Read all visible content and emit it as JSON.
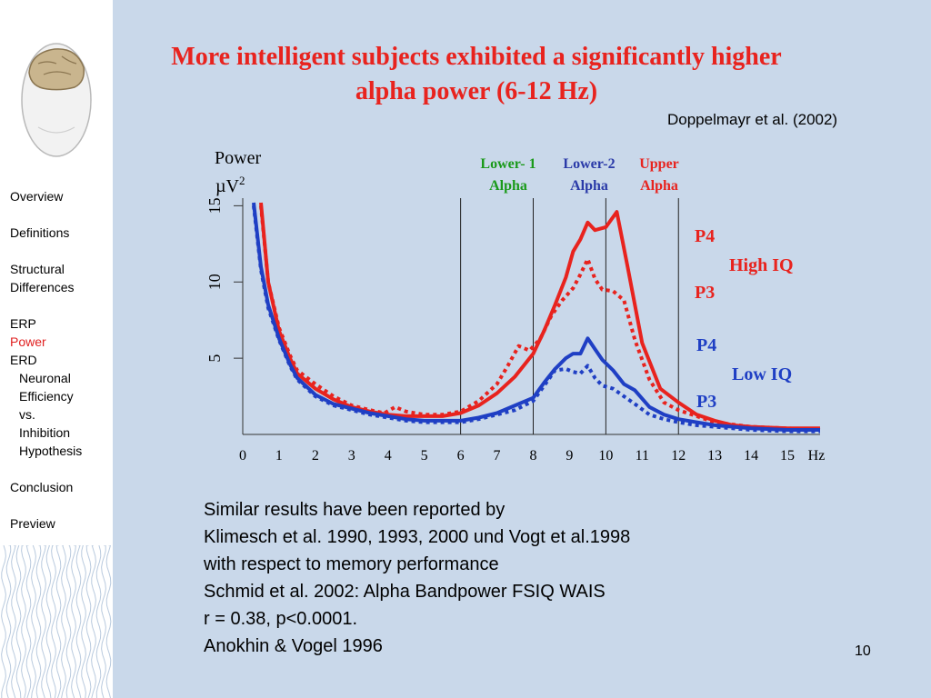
{
  "sidebar": {
    "items": [
      {
        "label": "Overview"
      },
      {
        "label": "Definitions"
      },
      {
        "label": "Structural"
      },
      {
        "label": "Differences"
      },
      {
        "label": "ERP"
      },
      {
        "label": "Power"
      },
      {
        "label": "ERD"
      },
      {
        "label": "Neuronal"
      },
      {
        "label": "Efficiency"
      },
      {
        "label": "vs."
      },
      {
        "label": "Inhibition"
      },
      {
        "label": "Hypothesis"
      },
      {
        "label": "Conclusion"
      },
      {
        "label": "Preview"
      }
    ],
    "active_item": "Power"
  },
  "slide": {
    "title_line1": "More intelligent subjects exhibited a significantly higher",
    "title_line2": "alpha power (6-12 Hz)",
    "citation": "Doppelmayr et al. (2002)",
    "summary": [
      "Similar results have been reported by",
      "Klimesch et al. 1990, 1993, 2000 und Vogt et al.1998",
      "with respect to memory performance",
      "Schmid et al. 2002: Alpha Bandpower FSIQ WAIS",
      "r = 0.38, p<0.0001.",
      "Anokhin & Vogel 1996"
    ],
    "slide_number": "10"
  },
  "colors": {
    "title": "#e8231e",
    "high_iq": "#e8231e",
    "low_iq": "#1f3fc4",
    "lower1_alpha": "#1a9a1a",
    "lower2_alpha": "#2a3aa8",
    "upper_alpha": "#e8231e",
    "background": "#c9d8ea"
  },
  "chart_data": {
    "type": "line",
    "ylabel_line1": "Power",
    "ylabel_line2": "µV",
    "ylabel_sup": "2",
    "xunit": "Hz",
    "xticks": [
      0,
      1,
      2,
      3,
      4,
      5,
      6,
      7,
      8,
      9,
      10,
      11,
      12,
      13,
      14,
      15
    ],
    "yticks": [
      5,
      10,
      15
    ],
    "xlim": [
      0,
      15.9
    ],
    "ylim": [
      0,
      15.5
    ],
    "band_boundaries": [
      6,
      8,
      10,
      12
    ],
    "bands": [
      {
        "line1": "Lower- 1",
        "line2": "Alpha",
        "color_key": "lower1_alpha"
      },
      {
        "line1": "Lower-2",
        "line2": "Alpha",
        "color_key": "lower2_alpha"
      },
      {
        "line1": "Upper",
        "line2": "Alpha",
        "color_key": "upper_alpha"
      }
    ],
    "series": [
      {
        "color_key": "high_iq",
        "style": "solid",
        "x": [
          0.5,
          0.7,
          1,
          1.3,
          1.5,
          2,
          2.5,
          3,
          3.5,
          4,
          4.5,
          5,
          5.5,
          6,
          6.5,
          7,
          7.5,
          8,
          8.3,
          8.6,
          8.9,
          9.1,
          9.3,
          9.5,
          9.7,
          10,
          10.3,
          10.6,
          11,
          11.5,
          12,
          12.5,
          13,
          13.5,
          14,
          15,
          15.9
        ],
        "y": [
          15.2,
          10,
          6.8,
          5,
          4,
          3,
          2.3,
          1.8,
          1.5,
          1.3,
          1.2,
          1.2,
          1.2,
          1.4,
          1.9,
          2.7,
          3.8,
          5.3,
          6.8,
          8.5,
          10.3,
          12,
          12.8,
          13.9,
          13.4,
          13.6,
          14.6,
          11,
          6,
          3,
          2.1,
          1.3,
          0.9,
          0.6,
          0.5,
          0.4,
          0.4
        ]
      },
      {
        "color_key": "high_iq",
        "style": "dotted",
        "x": [
          0.5,
          0.7,
          1,
          1.3,
          1.5,
          2,
          2.5,
          3,
          3.5,
          3.9,
          4.2,
          4.5,
          5,
          5.5,
          6,
          6.5,
          7,
          7.3,
          7.6,
          7.9,
          8.2,
          8.5,
          8.8,
          9.1,
          9.3,
          9.5,
          9.7,
          9.9,
          10.2,
          10.5,
          10.8,
          11.2,
          11.6,
          12,
          12.5,
          13,
          14,
          15,
          15.9
        ],
        "y": [
          15,
          10,
          7,
          5.2,
          4.2,
          3.3,
          2.5,
          1.9,
          1.6,
          1.4,
          1.8,
          1.5,
          1.3,
          1.3,
          1.5,
          2.2,
          3.3,
          4.5,
          5.8,
          5.5,
          6.3,
          7.8,
          8.8,
          9.6,
          10.5,
          11.5,
          10.2,
          9.5,
          9.4,
          8.8,
          6.2,
          3.6,
          2.1,
          1.6,
          1.2,
          0.8,
          0.5,
          0.4,
          0.3
        ]
      },
      {
        "color_key": "low_iq",
        "style": "solid",
        "x": [
          0.3,
          0.5,
          0.7,
          1,
          1.3,
          1.5,
          2,
          2.5,
          3,
          3.5,
          4,
          4.5,
          5,
          5.5,
          6,
          6.5,
          7,
          7.5,
          8,
          8.3,
          8.6,
          8.9,
          9.1,
          9.3,
          9.5,
          9.7,
          9.9,
          10.2,
          10.5,
          10.8,
          11.2,
          11.6,
          12,
          12.5,
          13,
          14,
          15,
          15.9
        ],
        "y": [
          15.2,
          11,
          8.5,
          6.3,
          4.6,
          3.7,
          2.6,
          2,
          1.7,
          1.4,
          1.2,
          1,
          0.9,
          0.9,
          0.9,
          1.1,
          1.4,
          1.9,
          2.4,
          3.4,
          4.3,
          5,
          5.3,
          5.3,
          6.3,
          5.6,
          4.9,
          4.2,
          3.3,
          2.9,
          1.8,
          1.3,
          1,
          0.8,
          0.6,
          0.4,
          0.3,
          0.3
        ]
      },
      {
        "color_key": "low_iq",
        "style": "dotted",
        "x": [
          0.3,
          0.5,
          0.7,
          1,
          1.3,
          1.5,
          2,
          2.5,
          3,
          3.5,
          4,
          4.5,
          5,
          5.5,
          6,
          6.5,
          7,
          7.5,
          8,
          8.3,
          8.6,
          8.9,
          9.1,
          9.3,
          9.5,
          9.7,
          9.9,
          10.2,
          10.5,
          10.8,
          11.2,
          11.6,
          12,
          12.5,
          13,
          14,
          15,
          15.9
        ],
        "y": [
          15,
          10.8,
          8.3,
          6.2,
          4.5,
          3.6,
          2.5,
          1.9,
          1.6,
          1.3,
          1.1,
          0.9,
          0.8,
          0.8,
          0.8,
          1,
          1.3,
          1.6,
          2.2,
          3.2,
          4.2,
          4.3,
          4.1,
          4.0,
          4.5,
          3.7,
          3.2,
          3.0,
          2.5,
          2.0,
          1.3,
          1.0,
          0.8,
          0.6,
          0.5,
          0.3,
          0.2,
          0.2
        ]
      }
    ],
    "series_labels": [
      {
        "text": "P4",
        "color_key": "high_iq"
      },
      {
        "text": "High IQ",
        "color_key": "high_iq"
      },
      {
        "text": "P3",
        "color_key": "high_iq"
      },
      {
        "text": "P4",
        "color_key": "low_iq"
      },
      {
        "text": "Low  IQ",
        "color_key": "low_iq"
      },
      {
        "text": "P3",
        "color_key": "low_iq"
      }
    ]
  }
}
